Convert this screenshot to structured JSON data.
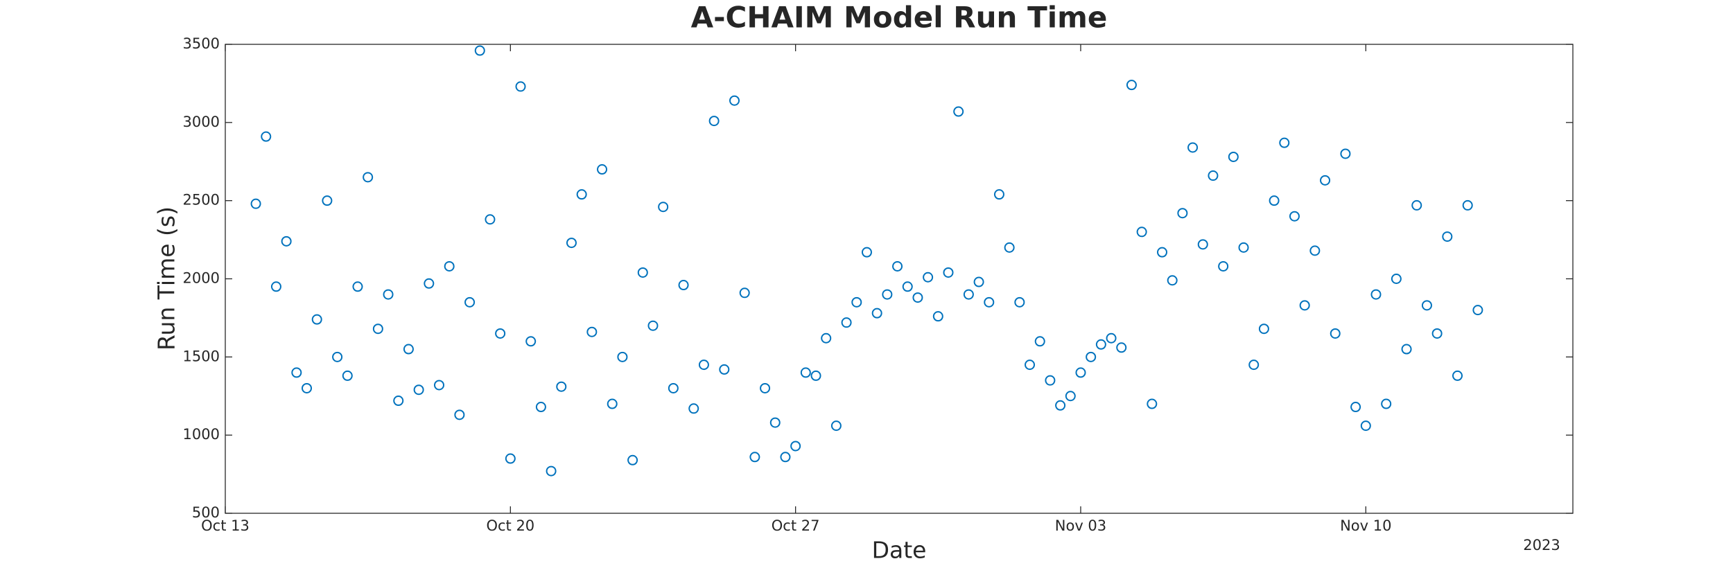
{
  "chart_data": {
    "type": "scatter",
    "title": "A-CHAIM Model Run Time",
    "xlabel": "Date",
    "ylabel": "Run Time (s)",
    "x_year_label": "2023",
    "xlim": [
      "2023-10-13T00:00",
      "2023-11-15T02:00"
    ],
    "xticks": [
      {
        "value": "2023-10-13T00:00",
        "label": "Oct 13"
      },
      {
        "value": "2023-10-20T00:00",
        "label": "Oct 20"
      },
      {
        "value": "2023-10-27T00:00",
        "label": "Oct 27"
      },
      {
        "value": "2023-11-03T00:00",
        "label": "Nov 03"
      },
      {
        "value": "2023-11-10T00:00",
        "label": "Nov 10"
      }
    ],
    "ylim": [
      500,
      3500
    ],
    "yticks": [
      500,
      1000,
      1500,
      2000,
      2500,
      3000,
      3500
    ],
    "grid": false,
    "series": [
      {
        "name": "Run Time",
        "color": "#0072bd",
        "x": [
          "2023-10-13T18:00",
          "2023-10-14T00:00",
          "2023-10-14T06:00",
          "2023-10-14T12:00",
          "2023-10-14T18:00",
          "2023-10-15T00:00",
          "2023-10-15T06:00",
          "2023-10-15T12:00",
          "2023-10-15T18:00",
          "2023-10-16T00:00",
          "2023-10-16T06:00",
          "2023-10-16T12:00",
          "2023-10-16T18:00",
          "2023-10-17T00:00",
          "2023-10-17T06:00",
          "2023-10-17T12:00",
          "2023-10-17T18:00",
          "2023-10-18T00:00",
          "2023-10-18T06:00",
          "2023-10-18T12:00",
          "2023-10-18T18:00",
          "2023-10-19T00:00",
          "2023-10-19T06:00",
          "2023-10-19T12:00",
          "2023-10-19T18:00",
          "2023-10-20T00:00",
          "2023-10-20T06:00",
          "2023-10-20T12:00",
          "2023-10-20T18:00",
          "2023-10-21T00:00",
          "2023-10-21T06:00",
          "2023-10-21T12:00",
          "2023-10-21T18:00",
          "2023-10-22T00:00",
          "2023-10-22T06:00",
          "2023-10-22T12:00",
          "2023-10-22T18:00",
          "2023-10-23T00:00",
          "2023-10-23T06:00",
          "2023-10-23T12:00",
          "2023-10-23T18:00",
          "2023-10-24T00:00",
          "2023-10-24T06:00",
          "2023-10-24T12:00",
          "2023-10-24T18:00",
          "2023-10-25T00:00",
          "2023-10-25T06:00",
          "2023-10-25T12:00",
          "2023-10-25T18:00",
          "2023-10-26T00:00",
          "2023-10-26T06:00",
          "2023-10-26T12:00",
          "2023-10-26T18:00",
          "2023-10-27T00:00",
          "2023-10-27T06:00",
          "2023-10-27T12:00",
          "2023-10-27T18:00",
          "2023-10-28T00:00",
          "2023-10-28T06:00",
          "2023-10-28T12:00",
          "2023-10-28T18:00",
          "2023-10-29T00:00",
          "2023-10-29T06:00",
          "2023-10-29T12:00",
          "2023-10-29T18:00",
          "2023-10-30T00:00",
          "2023-10-30T06:00",
          "2023-10-30T12:00",
          "2023-10-30T18:00",
          "2023-10-31T00:00",
          "2023-10-31T06:00",
          "2023-10-31T12:00",
          "2023-10-31T18:00",
          "2023-11-01T00:00",
          "2023-11-01T06:00",
          "2023-11-01T12:00",
          "2023-11-01T18:00",
          "2023-11-02T00:00",
          "2023-11-02T06:00",
          "2023-11-02T12:00",
          "2023-11-02T18:00",
          "2023-11-03T00:00",
          "2023-11-03T06:00",
          "2023-11-03T12:00",
          "2023-11-03T18:00",
          "2023-11-04T00:00",
          "2023-11-04T06:00",
          "2023-11-04T12:00",
          "2023-11-04T18:00",
          "2023-11-05T00:00",
          "2023-11-05T06:00",
          "2023-11-05T12:00",
          "2023-11-05T18:00",
          "2023-11-06T00:00",
          "2023-11-06T06:00",
          "2023-11-06T12:00",
          "2023-11-06T18:00",
          "2023-11-07T00:00",
          "2023-11-07T06:00",
          "2023-11-07T12:00",
          "2023-11-07T18:00",
          "2023-11-08T00:00",
          "2023-11-08T06:00",
          "2023-11-08T12:00",
          "2023-11-08T18:00",
          "2023-11-09T00:00",
          "2023-11-09T06:00",
          "2023-11-09T12:00",
          "2023-11-09T18:00",
          "2023-11-10T00:00",
          "2023-11-10T06:00",
          "2023-11-10T12:00",
          "2023-11-10T18:00",
          "2023-11-11T00:00",
          "2023-11-11T06:00",
          "2023-11-11T12:00",
          "2023-11-11T18:00",
          "2023-11-12T00:00",
          "2023-11-12T06:00",
          "2023-11-12T12:00",
          "2023-11-12T18:00"
        ],
        "values": [
          2480,
          2910,
          1950,
          2240,
          1400,
          1300,
          1740,
          2500,
          1500,
          1380,
          1950,
          2650,
          1680,
          1900,
          1220,
          1550,
          1290,
          1970,
          1320,
          2080,
          1130,
          1850,
          3460,
          2380,
          1650,
          850,
          3230,
          1600,
          1180,
          770,
          1310,
          2230,
          2540,
          1660,
          2700,
          1200,
          1500,
          840,
          2040,
          1700,
          2460,
          1300,
          1960,
          1170,
          1450,
          3010,
          1420,
          3140,
          1910,
          860,
          1300,
          1080,
          860,
          930,
          1400,
          1380,
          1620,
          1060,
          1720,
          1850,
          2170,
          1780,
          1900,
          2080,
          1950,
          1880,
          2010,
          1760,
          2040,
          3070,
          1900,
          1980,
          1850,
          2540,
          2200,
          1850,
          1450,
          1600,
          1350,
          1190,
          1250,
          1400,
          1500,
          1580,
          1620,
          1560,
          3240,
          2300,
          1200,
          2170,
          1990,
          2420,
          2840,
          2220,
          2660,
          2080,
          2780,
          2200,
          1450,
          1680,
          2500,
          2870,
          2400,
          1830,
          2180,
          2630,
          1650,
          2800,
          1180,
          1060,
          1900,
          1200,
          2000,
          1550,
          2470,
          1830,
          1650,
          2270,
          1380,
          2470,
          1800
        ]
      }
    ]
  }
}
